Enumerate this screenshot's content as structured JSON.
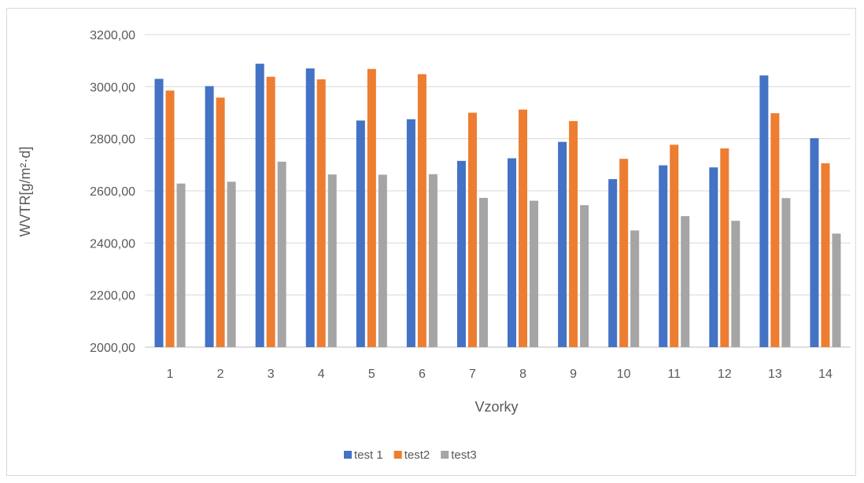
{
  "chart_data": {
    "type": "bar",
    "title": "",
    "xlabel": "Vzorky",
    "ylabel": "WVTR[g/m²·d]",
    "ylim": [
      2000,
      3200
    ],
    "ytick_step": 200,
    "ytick_labels": [
      "2000,00",
      "2200,00",
      "2400,00",
      "2600,00",
      "2800,00",
      "3000,00",
      "3200,00"
    ],
    "grid": true,
    "legend_position": "bottom",
    "categories": [
      "1",
      "2",
      "3",
      "4",
      "5",
      "6",
      "7",
      "8",
      "9",
      "10",
      "11",
      "12",
      "13",
      "14"
    ],
    "series": [
      {
        "name": "test 1",
        "color": "#4472C4",
        "values": [
          3030,
          3002,
          3088,
          3070,
          2870,
          2875,
          2715,
          2725,
          2788,
          2645,
          2698,
          2690,
          3043,
          2802
        ]
      },
      {
        "name": "test2",
        "color": "#ED7D31",
        "values": [
          2985,
          2958,
          3038,
          3028,
          3068,
          3048,
          2900,
          2912,
          2868,
          2723,
          2777,
          2763,
          2898,
          2706
        ]
      },
      {
        "name": "test3",
        "color": "#A5A5A5",
        "values": [
          2628,
          2635,
          2712,
          2663,
          2662,
          2664,
          2573,
          2562,
          2545,
          2448,
          2503,
          2485,
          2572,
          2436
        ]
      }
    ]
  }
}
